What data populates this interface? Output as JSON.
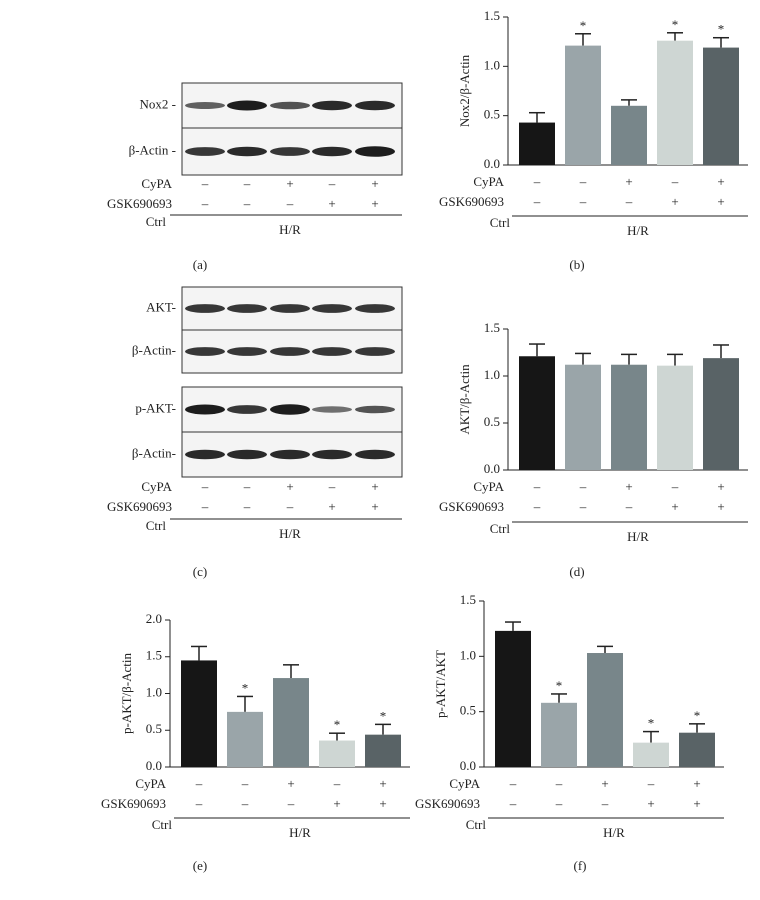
{
  "blots": [
    {
      "panel_label": "(a)",
      "strips": [
        {
          "label": "Nox2 -"
        },
        {
          "label": "β-Actin -"
        }
      ],
      "row_labels": [
        "CyPA",
        "GSK690693"
      ],
      "rows": [
        [
          "–",
          "–",
          "+",
          "–",
          "+"
        ],
        [
          "–",
          "–",
          "–",
          "+",
          "+"
        ]
      ],
      "group_labels": [
        "Ctrl",
        "H/R"
      ]
    },
    {
      "panel_label": "(c)",
      "strips": [
        {
          "label": "AKT-"
        },
        {
          "label": "β-Actin-"
        },
        {
          "label": "p-AKT-"
        },
        {
          "label": "β-Actin-"
        }
      ],
      "row_labels": [
        "CyPA",
        "GSK690693"
      ],
      "rows": [
        [
          "–",
          "–",
          "+",
          "–",
          "+"
        ],
        [
          "–",
          "–",
          "–",
          "+",
          "+"
        ]
      ],
      "group_labels": [
        "Ctrl",
        "H/R"
      ]
    }
  ],
  "chart_data": [
    {
      "type": "bar",
      "panel_label": "(b)",
      "ylabel": "Nox2/β-Actin",
      "ylim": [
        0,
        1.5
      ],
      "yticks": [
        {
          "value": 0,
          "label": "0.0"
        },
        0.5,
        {
          "value": 1,
          "label": "1.0"
        },
        1.5
      ],
      "values": [
        0.43,
        1.21,
        0.6,
        1.26,
        1.19
      ],
      "errors": [
        0.1,
        0.12,
        0.06,
        0.08,
        0.1
      ],
      "sig_labels": [
        null,
        "*",
        null,
        "*",
        "*"
      ],
      "colors": [
        "#161616",
        "#9aa5a9",
        "#78868a",
        "#ced6d3",
        "#596366"
      ],
      "row_labels": [
        "CyPA",
        "GSK690693"
      ],
      "rows": [
        [
          "–",
          "–",
          "+",
          "–",
          "+"
        ],
        [
          "–",
          "–",
          "–",
          "+",
          "+"
        ]
      ],
      "group_labels": [
        "Ctrl",
        "H/R"
      ]
    },
    {
      "type": "bar",
      "panel_label": "(d)",
      "ylabel": "AKT/β-Actin",
      "ylim": [
        0,
        1.5
      ],
      "yticks": [
        {
          "value": 0,
          "label": "0.0"
        },
        0.5,
        {
          "value": 1,
          "label": "1.0"
        },
        1.5
      ],
      "values": [
        1.21,
        1.12,
        1.12,
        1.11,
        1.19
      ],
      "errors": [
        0.13,
        0.12,
        0.11,
        0.12,
        0.14
      ],
      "sig_labels": [
        null,
        null,
        null,
        null,
        null
      ],
      "colors": [
        "#161616",
        "#9aa5a9",
        "#78868a",
        "#ced6d3",
        "#596366"
      ],
      "row_labels": [
        "CyPA",
        "GSK690693"
      ],
      "rows": [
        [
          "–",
          "–",
          "+",
          "–",
          "+"
        ],
        [
          "–",
          "–",
          "–",
          "+",
          "+"
        ]
      ],
      "group_labels": [
        "Ctrl",
        "H/R"
      ]
    },
    {
      "type": "bar",
      "panel_label": "(e)",
      "ylabel": "p-AKT/β-Actin",
      "ylim": [
        0,
        2
      ],
      "yticks": [
        {
          "value": 0,
          "label": "0.0"
        },
        0.5,
        {
          "value": 1,
          "label": "1.0"
        },
        1.5,
        {
          "value": 2,
          "label": "2.0"
        }
      ],
      "values": [
        1.45,
        0.75,
        1.21,
        0.36,
        0.44
      ],
      "errors": [
        0.19,
        0.21,
        0.18,
        0.1,
        0.14
      ],
      "sig_labels": [
        null,
        "*",
        null,
        "*",
        "*"
      ],
      "colors": [
        "#161616",
        "#9aa5a9",
        "#78868a",
        "#ced6d3",
        "#596366"
      ],
      "row_labels": [
        "CyPA",
        "GSK690693"
      ],
      "rows": [
        [
          "–",
          "–",
          "+",
          "–",
          "+"
        ],
        [
          "–",
          "–",
          "–",
          "+",
          "+"
        ]
      ],
      "group_labels": [
        "Ctrl",
        "H/R"
      ]
    },
    {
      "type": "bar",
      "panel_label": "(f)",
      "ylabel": "p-AKT/AKT",
      "ylim": [
        0,
        1.5
      ],
      "yticks": [
        {
          "value": 0,
          "label": "0.0"
        },
        0.5,
        {
          "value": 1,
          "label": "1.0"
        },
        1.5
      ],
      "values": [
        1.23,
        0.58,
        1.03,
        0.22,
        0.31
      ],
      "errors": [
        0.08,
        0.08,
        0.06,
        0.1,
        0.08
      ],
      "sig_labels": [
        null,
        "*",
        null,
        "*",
        "*"
      ],
      "colors": [
        "#161616",
        "#9aa5a9",
        "#78868a",
        "#ced6d3",
        "#596366"
      ],
      "row_labels": [
        "CyPA",
        "GSK690693"
      ],
      "rows": [
        [
          "–",
          "–",
          "+",
          "–",
          "+"
        ],
        [
          "–",
          "–",
          "–",
          "+",
          "+"
        ]
      ],
      "group_labels": [
        "Ctrl",
        "H/R"
      ]
    }
  ]
}
